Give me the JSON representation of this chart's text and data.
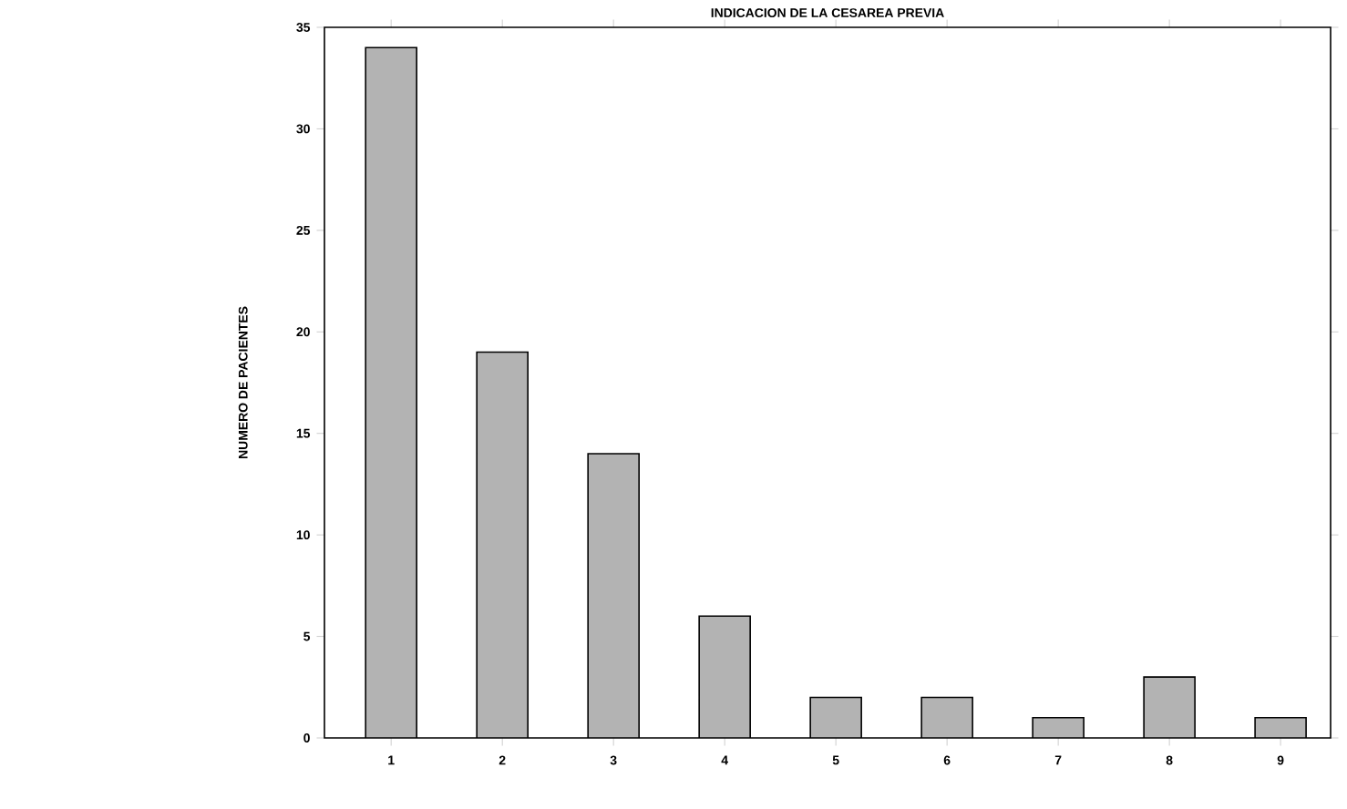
{
  "chart_data": {
    "type": "bar",
    "title": "INDICACION DE LA CESAREA PREVIA",
    "ylabel": "NUMERO DE PACIENTES",
    "categories": [
      "1",
      "2",
      "3",
      "4",
      "5",
      "6",
      "7",
      "8",
      "9"
    ],
    "values": [
      34,
      19,
      14,
      6,
      2,
      2,
      1,
      3,
      1
    ],
    "color": "#b3b3b3",
    "ylim": [
      0,
      35
    ],
    "yticks": [
      0,
      5,
      10,
      15,
      20,
      25,
      30,
      35
    ]
  }
}
